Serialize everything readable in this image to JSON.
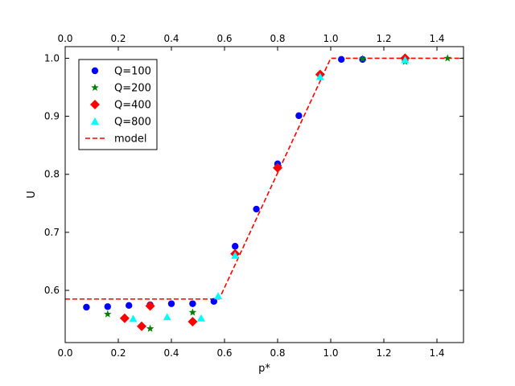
{
  "chart_data": {
    "type": "scatter",
    "xlabel": "p*",
    "ylabel": "U",
    "xlim": [
      0.0,
      1.5
    ],
    "ylim": [
      0.51,
      1.02
    ],
    "xticks": [
      "0.0",
      "0.2",
      "0.4",
      "0.6",
      "0.8",
      "1.0",
      "1.2",
      "1.4"
    ],
    "xtick_values": [
      0.0,
      0.2,
      0.4,
      0.6,
      0.8,
      1.0,
      1.2,
      1.4
    ],
    "yticks": [
      "0.6",
      "0.7",
      "0.8",
      "0.9",
      "1.0"
    ],
    "ytick_values": [
      0.6,
      0.7,
      0.8,
      0.9,
      1.0
    ],
    "top_axis_mirrors_x": true,
    "grid": false,
    "legend_position": "upper-left",
    "series": [
      {
        "name": "Q=100",
        "marker": "circle",
        "color": "#0000ff",
        "x": [
          0.08,
          0.16,
          0.24,
          0.32,
          0.4,
          0.48,
          0.56,
          0.64,
          0.72,
          0.8,
          0.88,
          0.96,
          1.04,
          1.12
        ],
        "y": [
          0.571,
          0.572,
          0.574,
          0.575,
          0.577,
          0.577,
          0.581,
          0.676,
          0.74,
          0.818,
          0.901,
          0.972,
          0.998,
          0.998
        ]
      },
      {
        "name": "Q=200",
        "marker": "star",
        "color": "#008000",
        "x": [
          0.16,
          0.32,
          0.48,
          0.64,
          0.8,
          0.96,
          1.12,
          1.28,
          1.44
        ],
        "y": [
          0.559,
          0.534,
          0.562,
          0.663,
          0.814,
          0.97,
          0.999,
          0.994,
          1.0
        ]
      },
      {
        "name": "Q=400",
        "marker": "diamond",
        "color": "#ff0000",
        "x": [
          0.224,
          0.288,
          0.32,
          0.48,
          0.64,
          0.8,
          0.96,
          1.28
        ],
        "y": [
          0.552,
          0.538,
          0.573,
          0.546,
          0.663,
          0.811,
          0.972,
          1.0
        ]
      },
      {
        "name": "Q=800",
        "marker": "triangle",
        "color": "#00ffff",
        "x": [
          0.256,
          0.384,
          0.512,
          0.576,
          0.64,
          0.96,
          1.28
        ],
        "y": [
          0.551,
          0.554,
          0.552,
          0.59,
          0.66,
          0.968,
          0.997
        ]
      },
      {
        "name": "model",
        "marker": "dashed-line",
        "color": "#ff0000",
        "x": [
          0.0,
          0.58,
          1.0,
          1.5
        ],
        "y": [
          0.585,
          0.585,
          1.0,
          1.0
        ]
      }
    ]
  }
}
